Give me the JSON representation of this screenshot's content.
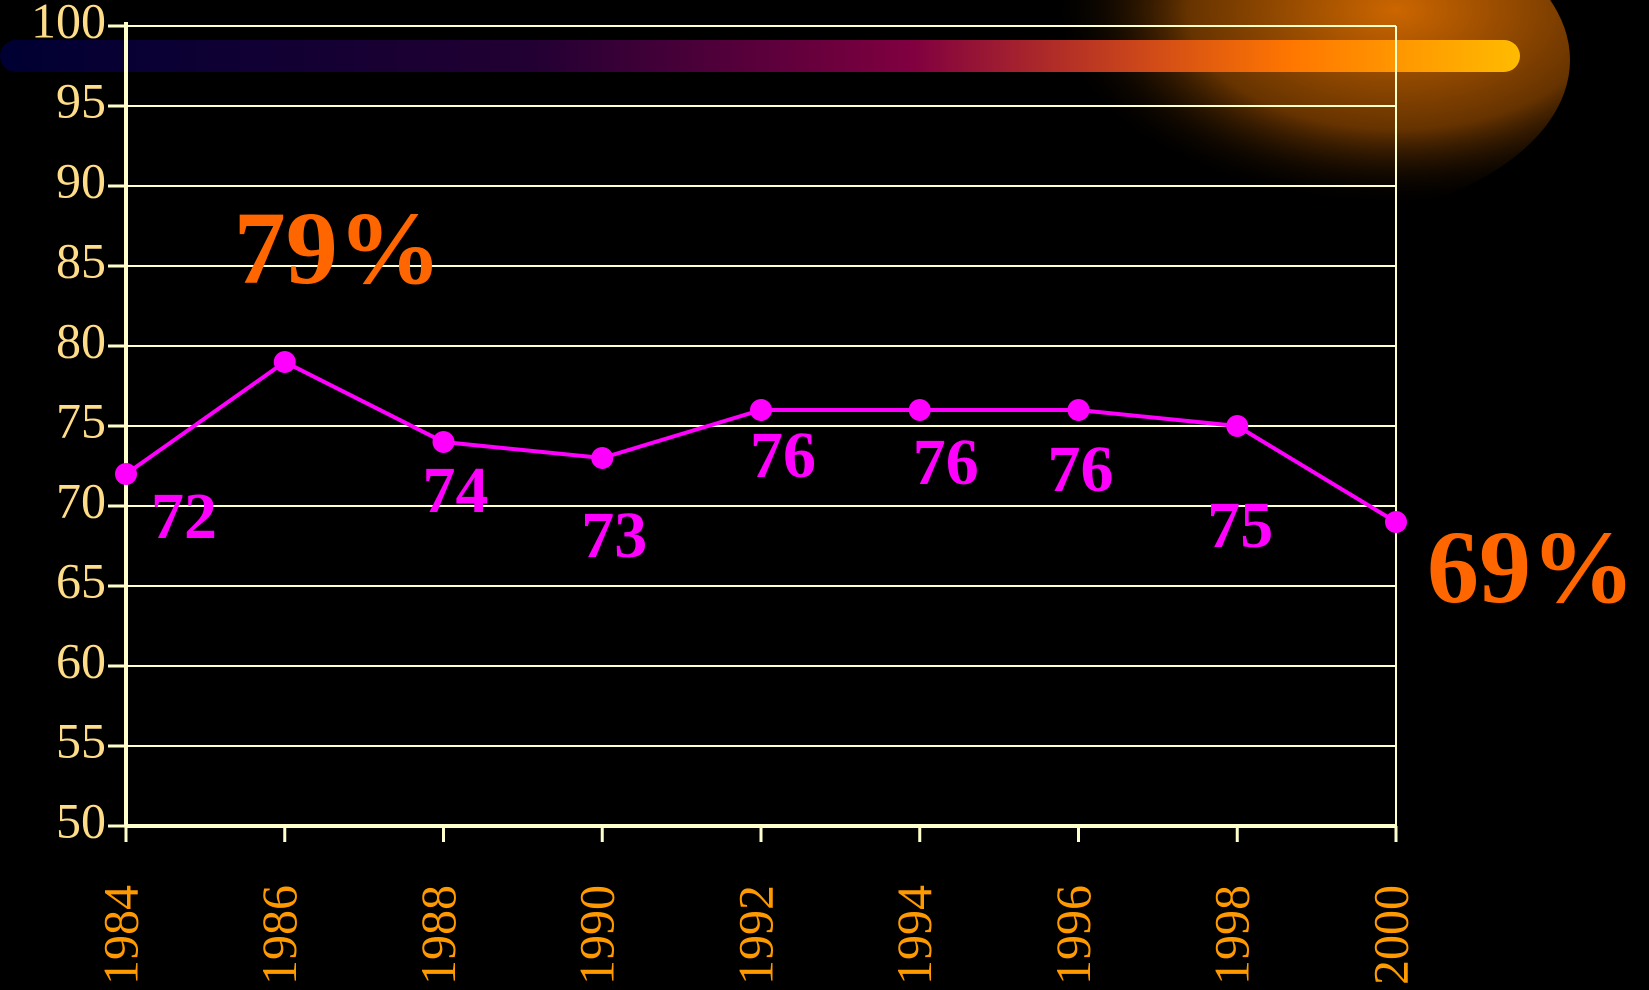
{
  "chart_data": {
    "type": "line",
    "categories": [
      "1984",
      "1986",
      "1988",
      "1990",
      "1992",
      "1994",
      "1996",
      "1998",
      "2000"
    ],
    "series": [
      {
        "color": "#ff00ff",
        "values": [
          72,
          79,
          74,
          73,
          76,
          76,
          76,
          75,
          69
        ],
        "value_labels": [
          "72",
          "79%",
          "74",
          "73",
          "76",
          "76",
          "76",
          "75",
          "69%"
        ]
      }
    ],
    "ylim": [
      50,
      100
    ],
    "yticks": [
      50,
      55,
      60,
      65,
      70,
      75,
      80,
      85,
      90,
      95,
      100
    ],
    "grid": true
  }
}
